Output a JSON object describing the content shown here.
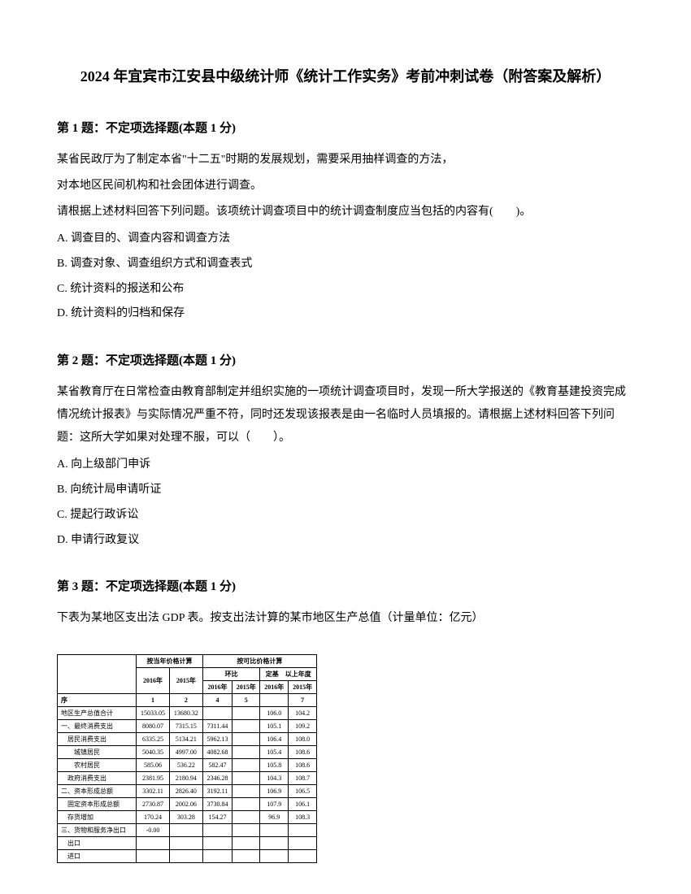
{
  "title": "2024 年宜宾市江安县中级统计师《统计工作实务》考前冲刺试卷（附答案及解析）",
  "q1": {
    "header": "第 1 题：不定项选择题(本题 1 分)",
    "line1": "某省民政厅为了制定本省\"十二五\"时期的发展规划，需要采用抽样调查的方法，",
    "line2": "对本地区民间机构和社会团体进行调查。",
    "line3": "请根据上述材料回答下列问题。该项统计调查项目中的统计调查制度应当包括的内容有(　　)。",
    "optA": "A. 调查目的、调查内容和调查方法",
    "optB": "B. 调查对象、调查组织方式和调查表式",
    "optC": "C. 统计资料的报送和公布",
    "optD": "D. 统计资料的归档和保存"
  },
  "q2": {
    "header": "第 2 题：不定项选择题(本题 1 分)",
    "text": "某省教育厅在日常检查由教育部制定并组织实施的一项统计调查项目时，发现一所大学报送的《教育基建投资完成情况统计报表》与实际情况严重不符，同时还发现该报表是由一名临时人员填报的。请根据上述材料回答下列问题：这所大学如果对处理不服，可以（　　）。",
    "optA": "A. 向上级部门申诉",
    "optB": "B. 向统计局申请听证",
    "optC": "C. 提起行政诉讼",
    "optD": "D. 申请行政复议"
  },
  "q3": {
    "header": "第 3 题：不定项选择题(本题 1 分)",
    "text": "下表为某地区支出法 GDP 表。按支出法计算的某市地区生产总值（计量单位：亿元）",
    "table": {
      "col_headers": {
        "group1": "按当年价格计算",
        "group2": "按可比价格计算",
        "y2016": "2016年",
        "y2015": "2015年",
        "sub1": "环比",
        "sub2": "定基　以上年度",
        "c1": "1",
        "c2": "2",
        "c3_2016": "2016年",
        "c3_2015": "2015年",
        "c4_2016": "2016年",
        "c4_2015": "2015年",
        "c3": "4",
        "c4": "5",
        "c5": "7"
      },
      "row_label": "序",
      "rows": [
        {
          "label": "地区生产总值合计",
          "v1": "15033.05",
          "v2": "13680.32",
          "v3": "",
          "v4": "",
          "v5": "106.0",
          "v6": "104.2",
          "indent": 0
        },
        {
          "label": "一、最终消费支出",
          "v1": "8080.07",
          "v2": "7315.15",
          "v3": "7311.44",
          "v4": "",
          "v5": "105.1",
          "v6": "109.2",
          "indent": 0
        },
        {
          "label": "居民消费支出",
          "v1": "6335.25",
          "v2": "5134.21",
          "v3": "5962.13",
          "v4": "",
          "v5": "106.4",
          "v6": "108.0",
          "indent": 1
        },
        {
          "label": "城镇居民",
          "v1": "5040.35",
          "v2": "4997.00",
          "v3": "4082.68",
          "v4": "",
          "v5": "105.4",
          "v6": "108.6",
          "indent": 2
        },
        {
          "label": "农村居民",
          "v1": "585.06",
          "v2": "536.22",
          "v3": "582.47",
          "v4": "",
          "v5": "105.8",
          "v6": "108.6",
          "indent": 2
        },
        {
          "label": "政府消费支出",
          "v1": "2381.95",
          "v2": "2180.94",
          "v3": "2346.28",
          "v4": "",
          "v5": "104.3",
          "v6": "108.7",
          "indent": 1
        },
        {
          "label": "二、资本形成总额",
          "v1": "3302.11",
          "v2": "2826.40",
          "v3": "3192.11",
          "v4": "",
          "v5": "106.9",
          "v6": "106.5",
          "indent": 0,
          "section": true
        },
        {
          "label": "固定资本形成总额",
          "v1": "2730.87",
          "v2": "2002.06",
          "v3": "3730.84",
          "v4": "",
          "v5": "107.9",
          "v6": "106.1",
          "indent": 1
        },
        {
          "label": "存货增加",
          "v1": "170.24",
          "v2": "303.28",
          "v3": "154.27",
          "v4": "",
          "v5": "96.9",
          "v6": "108.3",
          "indent": 1
        },
        {
          "label": "三、货物和服务净出口",
          "v1": "-0.00",
          "v2": "",
          "v3": "",
          "v4": "",
          "v5": "",
          "v6": "",
          "indent": 0,
          "section": true
        },
        {
          "label": "出口",
          "v1": "",
          "v2": "",
          "v3": "",
          "v4": "",
          "v5": "",
          "v6": "",
          "indent": 1
        },
        {
          "label": "进口",
          "v1": "",
          "v2": "",
          "v3": "",
          "v4": "",
          "v5": "",
          "v6": "",
          "indent": 1
        }
      ]
    }
  }
}
